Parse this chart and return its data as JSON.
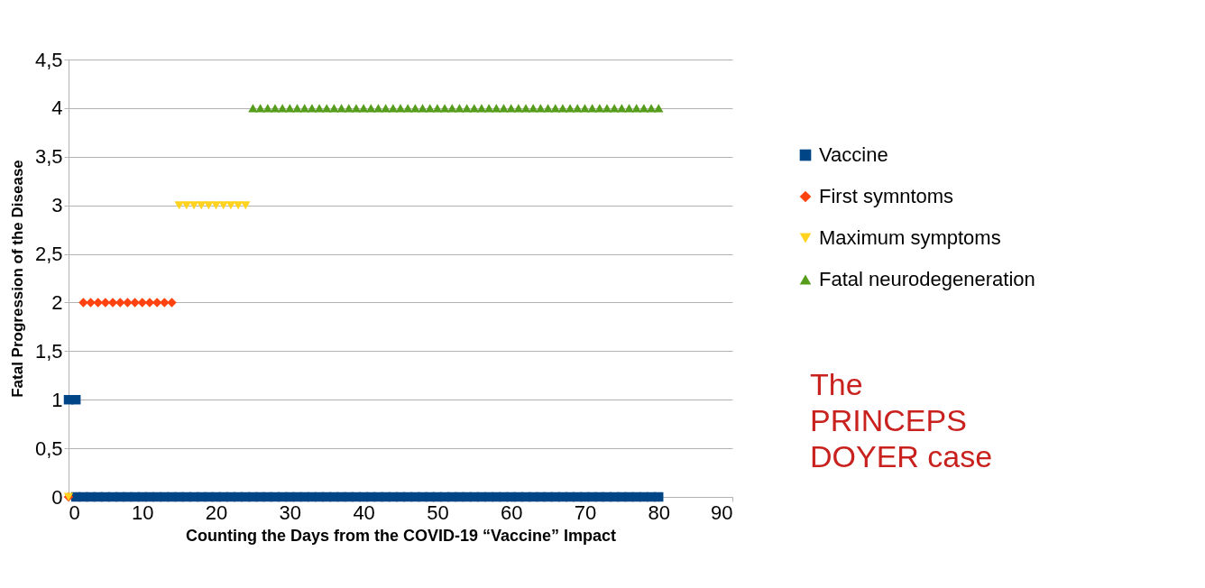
{
  "chart_data": {
    "type": "scatter",
    "xlabel": "Counting the Days from the COVID-19 “Vaccine” Impact",
    "ylabel": "Fatal Progression of the Disease",
    "xlim": [
      0,
      90
    ],
    "xticks": [
      0,
      10,
      20,
      30,
      40,
      50,
      60,
      70,
      80,
      90
    ],
    "ylim": [
      0,
      4.5
    ],
    "yticks": [
      0,
      {
        "value": 0.5,
        "label": "0,5"
      },
      1,
      {
        "value": 1.5,
        "label": "1,5"
      },
      2,
      {
        "value": 2.5,
        "label": "2,5"
      },
      3,
      {
        "value": 3.5,
        "label": "3,5"
      },
      4,
      {
        "value": 4.5,
        "label": "4,5"
      }
    ],
    "grid": "y",
    "legend": "right",
    "annotations": [
      "The\nPRINCEPS\nDOYER case"
    ],
    "series": [
      {
        "name": "Vaccine",
        "color": "#004586",
        "marker": "square",
        "x": [
          0,
          1,
          1,
          2,
          3,
          4,
          5,
          6,
          7,
          8,
          9,
          10,
          11,
          12,
          13,
          14,
          15,
          16,
          17,
          18,
          19,
          20,
          21,
          22,
          23,
          24,
          25,
          26,
          27,
          28,
          29,
          30,
          31,
          32,
          33,
          34,
          35,
          36,
          37,
          38,
          39,
          40,
          41,
          42,
          43,
          44,
          45,
          46,
          47,
          48,
          49,
          50,
          51,
          52,
          53,
          54,
          55,
          56,
          57,
          58,
          59,
          60,
          61,
          62,
          63,
          64,
          65,
          66,
          67,
          68,
          69,
          70,
          71,
          72,
          73,
          74,
          75,
          76,
          77,
          78,
          79,
          80
        ],
        "values": [
          1,
          1,
          0,
          0,
          0,
          0,
          0,
          0,
          0,
          0,
          0,
          0,
          0,
          0,
          0,
          0,
          0,
          0,
          0,
          0,
          0,
          0,
          0,
          0,
          0,
          0,
          0,
          0,
          0,
          0,
          0,
          0,
          0,
          0,
          0,
          0,
          0,
          0,
          0,
          0,
          0,
          0,
          0,
          0,
          0,
          0,
          0,
          0,
          0,
          0,
          0,
          0,
          0,
          0,
          0,
          0,
          0,
          0,
          0,
          0,
          0,
          0,
          0,
          0,
          0,
          0,
          0,
          0,
          0,
          0,
          0,
          0,
          0,
          0,
          0,
          0,
          0,
          0,
          0,
          0,
          0,
          0
        ]
      },
      {
        "name": "First symntoms",
        "color": "#ff420e",
        "marker": "diamond",
        "x": [
          0,
          2,
          3,
          4,
          5,
          6,
          7,
          8,
          9,
          10,
          11,
          12,
          13,
          14
        ],
        "values": [
          0,
          2,
          2,
          2,
          2,
          2,
          2,
          2,
          2,
          2,
          2,
          2,
          2,
          2
        ]
      },
      {
        "name": "Maximum symptoms",
        "color": "#ffd320",
        "marker": "triangle-down",
        "x": [
          0,
          15,
          16,
          17,
          18,
          19,
          20,
          21,
          22,
          23,
          24
        ],
        "values": [
          0,
          3,
          3,
          3,
          3,
          3,
          3,
          3,
          3,
          3,
          3
        ]
      },
      {
        "name": "Fatal neurodegeneration",
        "color": "#579d1c",
        "marker": "triangle",
        "x": [
          25,
          26,
          27,
          28,
          29,
          30,
          31,
          32,
          33,
          34,
          35,
          36,
          37,
          38,
          39,
          40,
          41,
          42,
          43,
          44,
          45,
          46,
          47,
          48,
          49,
          50,
          51,
          52,
          53,
          54,
          55,
          56,
          57,
          58,
          59,
          60,
          61,
          62,
          63,
          64,
          65,
          66,
          67,
          68,
          69,
          70,
          71,
          72,
          73,
          74,
          75,
          76,
          77,
          78,
          79,
          80
        ],
        "values": [
          4,
          4,
          4,
          4,
          4,
          4,
          4,
          4,
          4,
          4,
          4,
          4,
          4,
          4,
          4,
          4,
          4,
          4,
          4,
          4,
          4,
          4,
          4,
          4,
          4,
          4,
          4,
          4,
          4,
          4,
          4,
          4,
          4,
          4,
          4,
          4,
          4,
          4,
          4,
          4,
          4,
          4,
          4,
          4,
          4,
          4,
          4,
          4,
          4,
          4,
          4,
          4,
          4,
          4,
          4,
          4
        ]
      }
    ]
  }
}
